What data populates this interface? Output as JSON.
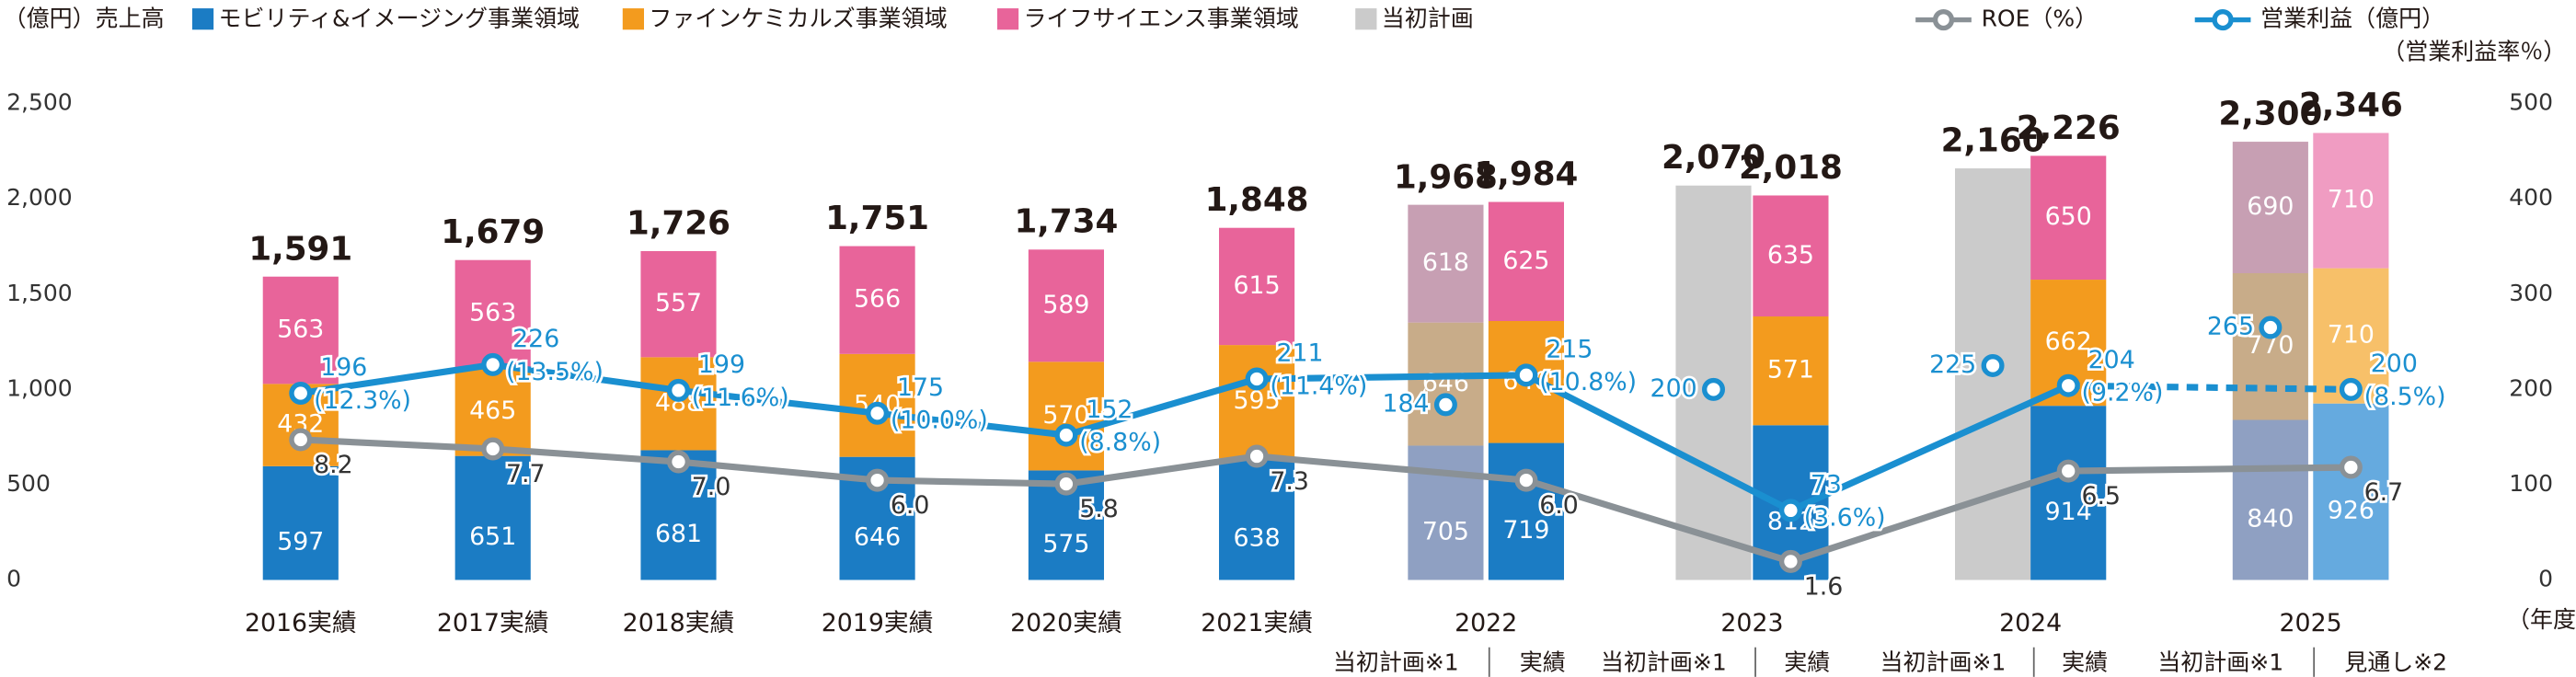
{
  "chart_data": {
    "type": "stacked-bar-line",
    "y_unit": "（億円）",
    "legend_title": "売上高",
    "x_unit": "（年度）",
    "ylim": [
      0,
      2500
    ],
    "yticks": [
      0,
      500,
      {
        "value": 1000,
        "label": "1,000"
      },
      {
        "value": 1500,
        "label": "1,500"
      },
      {
        "value": 2000,
        "label": "2,000"
      },
      {
        "value": 2500,
        "label": "2,500"
      }
    ],
    "y2lim": [
      0,
      500
    ],
    "y2ticks": [
      0,
      100,
      200,
      300,
      400,
      500
    ],
    "categories": [
      "2016実績",
      "2017実績",
      "2018実績",
      "2019実績",
      "2020実績",
      "2021実績",
      "当初計画※1",
      "実績",
      "当初計画※1",
      "実績",
      "当初計画※1",
      "実績",
      "当初計画※1",
      "見通し※2"
    ],
    "groups": [
      "2022",
      "2023",
      "2024",
      "2025"
    ],
    "bar_style": [
      "actual",
      "actual",
      "actual",
      "actual",
      "actual",
      "actual",
      "plan",
      "actual",
      "plan",
      "actual",
      "plan",
      "actual",
      "plan",
      "forecast"
    ],
    "series": [
      {
        "name": "モビリティ&イメージング事業領域",
        "color": "#1b7cc4",
        "plan_color": "#8fa0c2",
        "forecast_color": "#65aadf",
        "values": [
          597,
          651,
          681,
          646,
          575,
          638,
          705,
          719,
          null,
          812,
          null,
          914,
          840,
          926
        ]
      },
      {
        "name": "ファインケミカルズ事業領域",
        "color": "#f39b1e",
        "plan_color": "#c8ac89",
        "forecast_color": "#f7c069",
        "values": [
          432,
          465,
          488,
          540,
          570,
          595,
          646,
          640,
          null,
          571,
          null,
          662,
          770,
          710
        ]
      },
      {
        "name": "ライフサイエンス事業領域",
        "color": "#e8649a",
        "plan_color": "#c79fb3",
        "forecast_color": "#f09cc2",
        "values": [
          563,
          563,
          557,
          566,
          589,
          615,
          618,
          625,
          null,
          635,
          null,
          650,
          690,
          710
        ]
      },
      {
        "name": "当初計画",
        "color": "#cbcbcb",
        "values": [
          null,
          null,
          null,
          null,
          null,
          null,
          null,
          null,
          2070,
          null,
          2160,
          null,
          null,
          null
        ]
      }
    ],
    "totals": {
      "values": [
        1591,
        1679,
        1726,
        1751,
        1734,
        1848,
        1968,
        1984,
        2070,
        2018,
        2160,
        2226,
        2300,
        2346
      ],
      "value_labels": [
        "1,591",
        "1,679",
        "1,726",
        "1,751",
        "1,734",
        "1,848",
        "1,968",
        "1,984",
        "2,070",
        "2,018",
        "2,160",
        "2,226",
        "2,300",
        "2,346"
      ]
    },
    "roe": {
      "name": "ROE（%）",
      "color": "#8a9196",
      "lim": [
        0.6,
        26.4
      ],
      "values": [
        8.2,
        7.7,
        7.0,
        6.0,
        5.8,
        7.3,
        6.0,
        1.6,
        6.5,
        6.7
      ],
      "value_labels": [
        "8.2",
        "7.7",
        "7.0",
        "6.0",
        "5.8",
        "7.3",
        "6.0",
        "1.6",
        "6.5",
        "6.7"
      ]
    },
    "operating_income": {
      "name": "営業利益（億円）",
      "note": "（営業利益率％）",
      "color": "#1a8fd0",
      "axis": "y2",
      "values": [
        196,
        226,
        199,
        175,
        152,
        211,
        215,
        73,
        204,
        200
      ],
      "rates": [
        12.3,
        13.5,
        11.6,
        10.0,
        8.8,
        11.4,
        10.8,
        3.6,
        9.2,
        8.5
      ],
      "rate_labels": [
        "(12.3%)",
        "(13.5%)",
        "(11.6%)",
        "(10.0%)",
        "(8.8%)",
        "(11.4%)",
        "(10.8%)",
        "(3.6%)",
        "(9.2%)",
        "(8.5%)"
      ],
      "plan_values": [
        184,
        200,
        225,
        265
      ]
    }
  }
}
